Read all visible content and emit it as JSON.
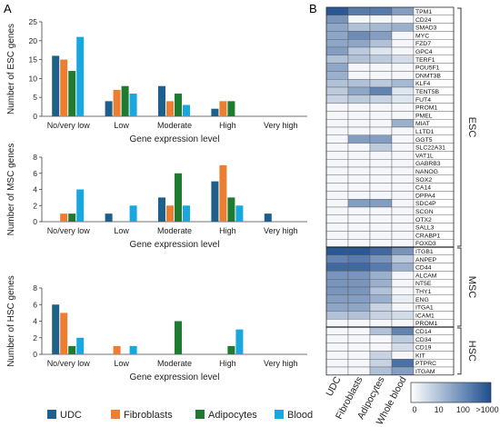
{
  "panel_labels": {
    "a": "A",
    "b": "B"
  },
  "series_colors": {
    "UDC": "#1f5f8b",
    "Fibroblasts": "#ed7d31",
    "Adipocytes": "#1e7b2f",
    "Blood": "#1aa7de"
  },
  "heat_colors": {
    "low": "#ffffff",
    "high": "#1f4f8f"
  },
  "chart_data": [
    {
      "type": "bar",
      "panel": "A",
      "categories": [
        "No/very low",
        "Low",
        "Moderate",
        "High",
        "Very high"
      ],
      "xlabel": "Gene expression level",
      "ylabel": "Number of ESC genes",
      "ylim": [
        0,
        25
      ],
      "yticks": [
        0,
        5,
        10,
        15,
        20,
        25
      ],
      "series": [
        {
          "name": "UDC",
          "values": [
            16,
            4,
            8,
            2,
            0
          ]
        },
        {
          "name": "Fibroblasts",
          "values": [
            15,
            7,
            4,
            4,
            0
          ]
        },
        {
          "name": "Adipocytes",
          "values": [
            12,
            8,
            6,
            4,
            0
          ]
        },
        {
          "name": "Blood",
          "values": [
            21,
            6,
            3,
            0,
            0
          ]
        }
      ]
    },
    {
      "type": "bar",
      "panel": "A",
      "categories": [
        "No/very low",
        "Low",
        "Moderate",
        "High",
        "Very high"
      ],
      "xlabel": "Gene expression level",
      "ylabel": "Number of MSC genes",
      "ylim": [
        0,
        8
      ],
      "yticks": [
        0,
        2,
        4,
        6,
        8
      ],
      "series": [
        {
          "name": "UDC",
          "values": [
            0,
            1,
            3,
            5,
            1
          ]
        },
        {
          "name": "Fibroblasts",
          "values": [
            1,
            0,
            2,
            7,
            0
          ]
        },
        {
          "name": "Adipocytes",
          "values": [
            1,
            0,
            6,
            3,
            0
          ]
        },
        {
          "name": "Blood",
          "values": [
            4,
            2,
            2,
            2,
            0
          ]
        }
      ]
    },
    {
      "type": "bar",
      "panel": "A",
      "categories": [
        "No/very low",
        "Low",
        "Moderate",
        "High",
        "Very high"
      ],
      "xlabel": "Gene expression level",
      "ylabel": "Number of HSC genes",
      "ylim": [
        0,
        8
      ],
      "yticks": [
        0,
        2,
        4,
        6,
        8
      ],
      "legend_position": "bottom",
      "series": [
        {
          "name": "UDC",
          "values": [
            6,
            0,
            0,
            0,
            0
          ]
        },
        {
          "name": "Fibroblasts",
          "values": [
            5,
            1,
            0,
            0,
            0
          ]
        },
        {
          "name": "Adipocytes",
          "values": [
            1,
            0,
            4,
            1,
            0
          ]
        },
        {
          "name": "Blood",
          "values": [
            2,
            1,
            0,
            3,
            0
          ]
        }
      ]
    },
    {
      "type": "heatmap",
      "panel": "B",
      "columns": [
        "UDC",
        "Fibroblasts",
        "Adipocytes",
        "Whole blood"
      ],
      "rows": [
        "TPM1",
        "CD24",
        "SMAD3",
        "MYC",
        "FZD7",
        "GPC4",
        "TERF1",
        "POU5F1",
        "DNMT3B",
        "KLF4",
        "TENT5B",
        "FUT4",
        "PROM1",
        "PMEL",
        "MIAT",
        "L1TD1",
        "GGT5",
        "SLC22A31",
        "VAT1L",
        "GABRB3",
        "NANOG",
        "SOX2",
        "CA14",
        "DPPA4",
        "SDC4P",
        "SCGN",
        "OTX2",
        "SALL3",
        "CRABP1",
        "FOXD3",
        "ITGB1",
        "ANPEP",
        "CD44",
        "ALCAM",
        "NT5E",
        "THY1",
        "ENG",
        "ITGA1",
        "ICAM1",
        "PROM1",
        "CD14",
        "CD34",
        "CD19",
        "KIT",
        "PTPRC",
        "ITGAM"
      ],
      "values": [
        [
          0.95,
          0.75,
          0.75,
          0.55
        ],
        [
          0.6,
          0.05,
          0.05,
          0.05
        ],
        [
          0.5,
          0.35,
          0.4,
          0.45
        ],
        [
          0.5,
          0.65,
          0.55,
          0.05
        ],
        [
          0.5,
          0.5,
          0.35,
          0.05
        ],
        [
          0.55,
          0.3,
          0.15,
          0.05
        ],
        [
          0.35,
          0.35,
          0.3,
          0.2
        ],
        [
          0.5,
          0.05,
          0.05,
          0.05
        ],
        [
          0.45,
          0.05,
          0.05,
          0.05
        ],
        [
          0.35,
          0.35,
          0.3,
          0.4
        ],
        [
          0.3,
          0.5,
          0.7,
          0.15
        ],
        [
          0.25,
          0.3,
          0.25,
          0.15
        ],
        [
          0.05,
          0.05,
          0.05,
          0.05
        ],
        [
          0.05,
          0.05,
          0.05,
          0.05
        ],
        [
          0.05,
          0.05,
          0.05,
          0.45
        ],
        [
          0.05,
          0.05,
          0.05,
          0.05
        ],
        [
          0.05,
          0.55,
          0.55,
          0.05
        ],
        [
          0.05,
          0.05,
          0.3,
          0.05
        ],
        [
          0.05,
          0.05,
          0.05,
          0.05
        ],
        [
          0.05,
          0.05,
          0.05,
          0.05
        ],
        [
          0.05,
          0.05,
          0.05,
          0.05
        ],
        [
          0.05,
          0.05,
          0.05,
          0.05
        ],
        [
          0.05,
          0.05,
          0.05,
          0.05
        ],
        [
          0.05,
          0.05,
          0.05,
          0.05
        ],
        [
          0.05,
          0.55,
          0.55,
          0.05
        ],
        [
          0.05,
          0.05,
          0.05,
          0.05
        ],
        [
          0.05,
          0.05,
          0.05,
          0.05
        ],
        [
          0.05,
          0.05,
          0.05,
          0.05
        ],
        [
          0.05,
          0.05,
          0.05,
          0.05
        ],
        [
          0.05,
          0.05,
          0.05,
          0.05
        ],
        [
          0.95,
          0.95,
          0.85,
          0.6
        ],
        [
          0.7,
          0.75,
          0.6,
          0.3
        ],
        [
          0.85,
          0.85,
          0.75,
          0.45
        ],
        [
          0.6,
          0.6,
          0.45,
          0.05
        ],
        [
          0.6,
          0.6,
          0.45,
          0.05
        ],
        [
          0.6,
          0.6,
          0.35,
          0.05
        ],
        [
          0.55,
          0.55,
          0.45,
          0.1
        ],
        [
          0.5,
          0.5,
          0.25,
          0.05
        ],
        [
          0.35,
          0.35,
          0.25,
          0.2
        ],
        [
          0.05,
          0.05,
          0.05,
          0.05
        ],
        [
          0.05,
          0.05,
          0.35,
          0.7
        ],
        [
          0.05,
          0.05,
          0.05,
          0.3
        ],
        [
          0.05,
          0.05,
          0.05,
          0.2
        ],
        [
          0.05,
          0.05,
          0.25,
          0.05
        ],
        [
          0.05,
          0.05,
          0.25,
          0.8
        ],
        [
          0.05,
          0.05,
          0.35,
          0.55
        ]
      ],
      "groups": [
        {
          "label": "ESC",
          "start_row": 0,
          "end_row": 29
        },
        {
          "label": "MSC",
          "start_row": 30,
          "end_row": 39
        },
        {
          "label": "HSC",
          "start_row": 40,
          "end_row": 45
        }
      ],
      "colorbar": {
        "ticks": [
          "0",
          "10",
          "100",
          ">1000"
        ]
      }
    }
  ]
}
